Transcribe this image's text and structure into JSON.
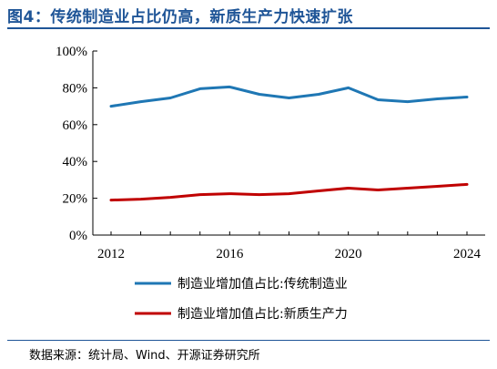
{
  "title": "图4：传统制造业占比仍高，新质生产力快速扩张",
  "source": "数据来源：统计局、Wind、开源证券研究所",
  "colors": {
    "title": "#1f5597",
    "series_1": "#1f77b4",
    "series_2": "#c00000"
  },
  "chart_data": {
    "type": "line",
    "x": [
      2012,
      2013,
      2014,
      2015,
      2016,
      2017,
      2018,
      2019,
      2020,
      2021,
      2022,
      2023,
      2024
    ],
    "x_ticks": [
      "2012",
      "2016",
      "2020",
      "2024"
    ],
    "y_ticks": [
      "0%",
      "20%",
      "40%",
      "60%",
      "80%",
      "100%"
    ],
    "ylim": [
      0,
      100
    ],
    "series": [
      {
        "name": "制造业增加值占比:传统制造业",
        "values": [
          70,
          72.5,
          74.5,
          79.5,
          80.5,
          76.5,
          74.5,
          76.5,
          80,
          73.5,
          72.5,
          74,
          75
        ]
      },
      {
        "name": "制造业增加值占比:新质生产力",
        "values": [
          19,
          19.5,
          20.5,
          22,
          22.5,
          22,
          22.5,
          24,
          25.5,
          24.5,
          25.5,
          26.5,
          27.5
        ]
      }
    ],
    "legend_position": "bottom"
  }
}
